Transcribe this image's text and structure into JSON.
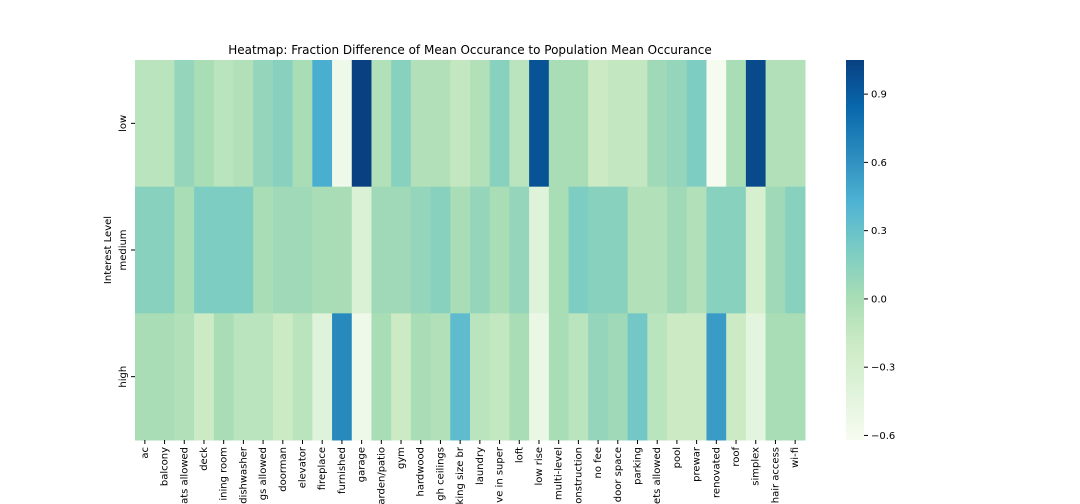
{
  "chart_data": {
    "type": "heatmap",
    "title": "Heatmap: Fraction Difference of Mean Occurance to Population Mean Occurance",
    "y_label": "Interest Level",
    "categories": [
      "ac",
      "balcony",
      "ats allowed",
      "deck",
      "ining room",
      "dishwasher",
      "gs allowed",
      "doorman",
      "elevator",
      "fireplace",
      "furnished",
      "garage",
      "arden/patio",
      "gym",
      "hardwood",
      "gh ceilings",
      "king size br",
      "laundry",
      "ve in super",
      "loft",
      "low rise",
      "multi-level",
      "onstruction",
      "no fee",
      "door space",
      "parking",
      "ets allowed",
      "pool",
      "prewar",
      "renovated",
      "roof",
      "simplex",
      "hair access",
      "wi-fi"
    ],
    "rows": [
      "low",
      "medium",
      "high"
    ],
    "values": [
      [
        -0.1,
        -0.1,
        0.1,
        0.0,
        -0.1,
        -0.05,
        0.1,
        0.15,
        0.0,
        0.45,
        -0.55,
        1.05,
        -0.05,
        0.15,
        -0.05,
        -0.05,
        -0.15,
        -0.05,
        0.15,
        -0.1,
        0.95,
        0.0,
        0.0,
        -0.2,
        -0.15,
        -0.15,
        0.05,
        0.1,
        0.2,
        -0.6,
        0.0,
        1.0,
        -0.05,
        -0.05
      ],
      [
        0.15,
        0.15,
        0.0,
        0.2,
        0.2,
        0.2,
        0.0,
        0.05,
        0.05,
        0.0,
        0.0,
        -0.35,
        0.05,
        0.05,
        0.1,
        0.15,
        0.0,
        0.1,
        0.0,
        0.1,
        -0.4,
        0.0,
        0.2,
        0.15,
        0.15,
        -0.05,
        -0.05,
        0.05,
        -0.05,
        0.15,
        0.15,
        -0.3,
        0.05,
        0.15
      ],
      [
        0.0,
        0.0,
        -0.05,
        -0.2,
        0.0,
        -0.1,
        -0.1,
        -0.2,
        -0.1,
        -0.4,
        0.65,
        -0.55,
        0.0,
        -0.2,
        0.0,
        -0.05,
        0.35,
        -0.1,
        -0.15,
        0.0,
        -0.5,
        0.0,
        -0.1,
        0.1,
        0.05,
        0.25,
        -0.1,
        -0.2,
        -0.2,
        0.55,
        -0.2,
        -0.45,
        0.0,
        0.0
      ]
    ],
    "colormap": "GnBu",
    "clim": [
      -0.62,
      1.05
    ],
    "cticks": [
      {
        "value": -0.6,
        "label": "−0.6"
      },
      {
        "value": -0.3,
        "label": "−0.3"
      },
      {
        "value": 0.0,
        "label": "0.0"
      },
      0.3,
      0.6,
      0.9
    ]
  }
}
